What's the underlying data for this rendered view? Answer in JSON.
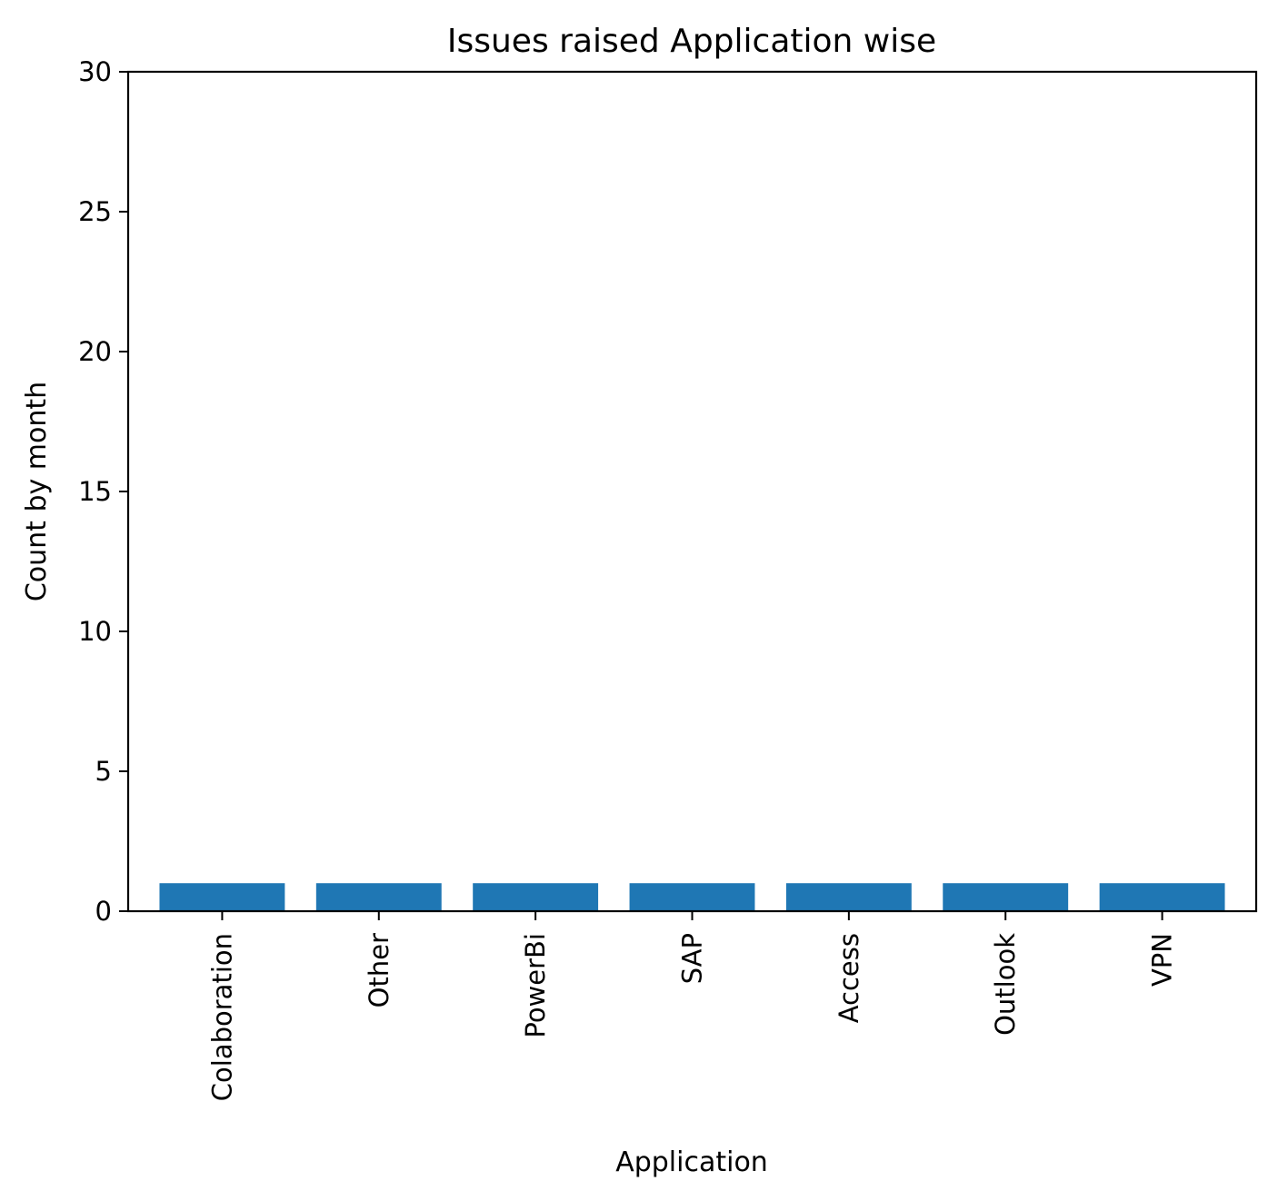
{
  "chart_data": {
    "type": "bar",
    "title": "Issues raised Application wise",
    "xlabel": "Application",
    "ylabel": "Count by month",
    "categories": [
      "Colaboration",
      "Other",
      "PowerBi",
      "SAP",
      "Access",
      "Outlook",
      "VPN"
    ],
    "values": [
      1,
      1,
      1,
      1,
      1,
      1,
      1
    ],
    "ylim": [
      0,
      30
    ],
    "yticks": [
      0,
      5,
      10,
      15,
      20,
      25,
      30
    ],
    "bar_color": "#1f77b4",
    "grid": false,
    "legend": "none"
  }
}
